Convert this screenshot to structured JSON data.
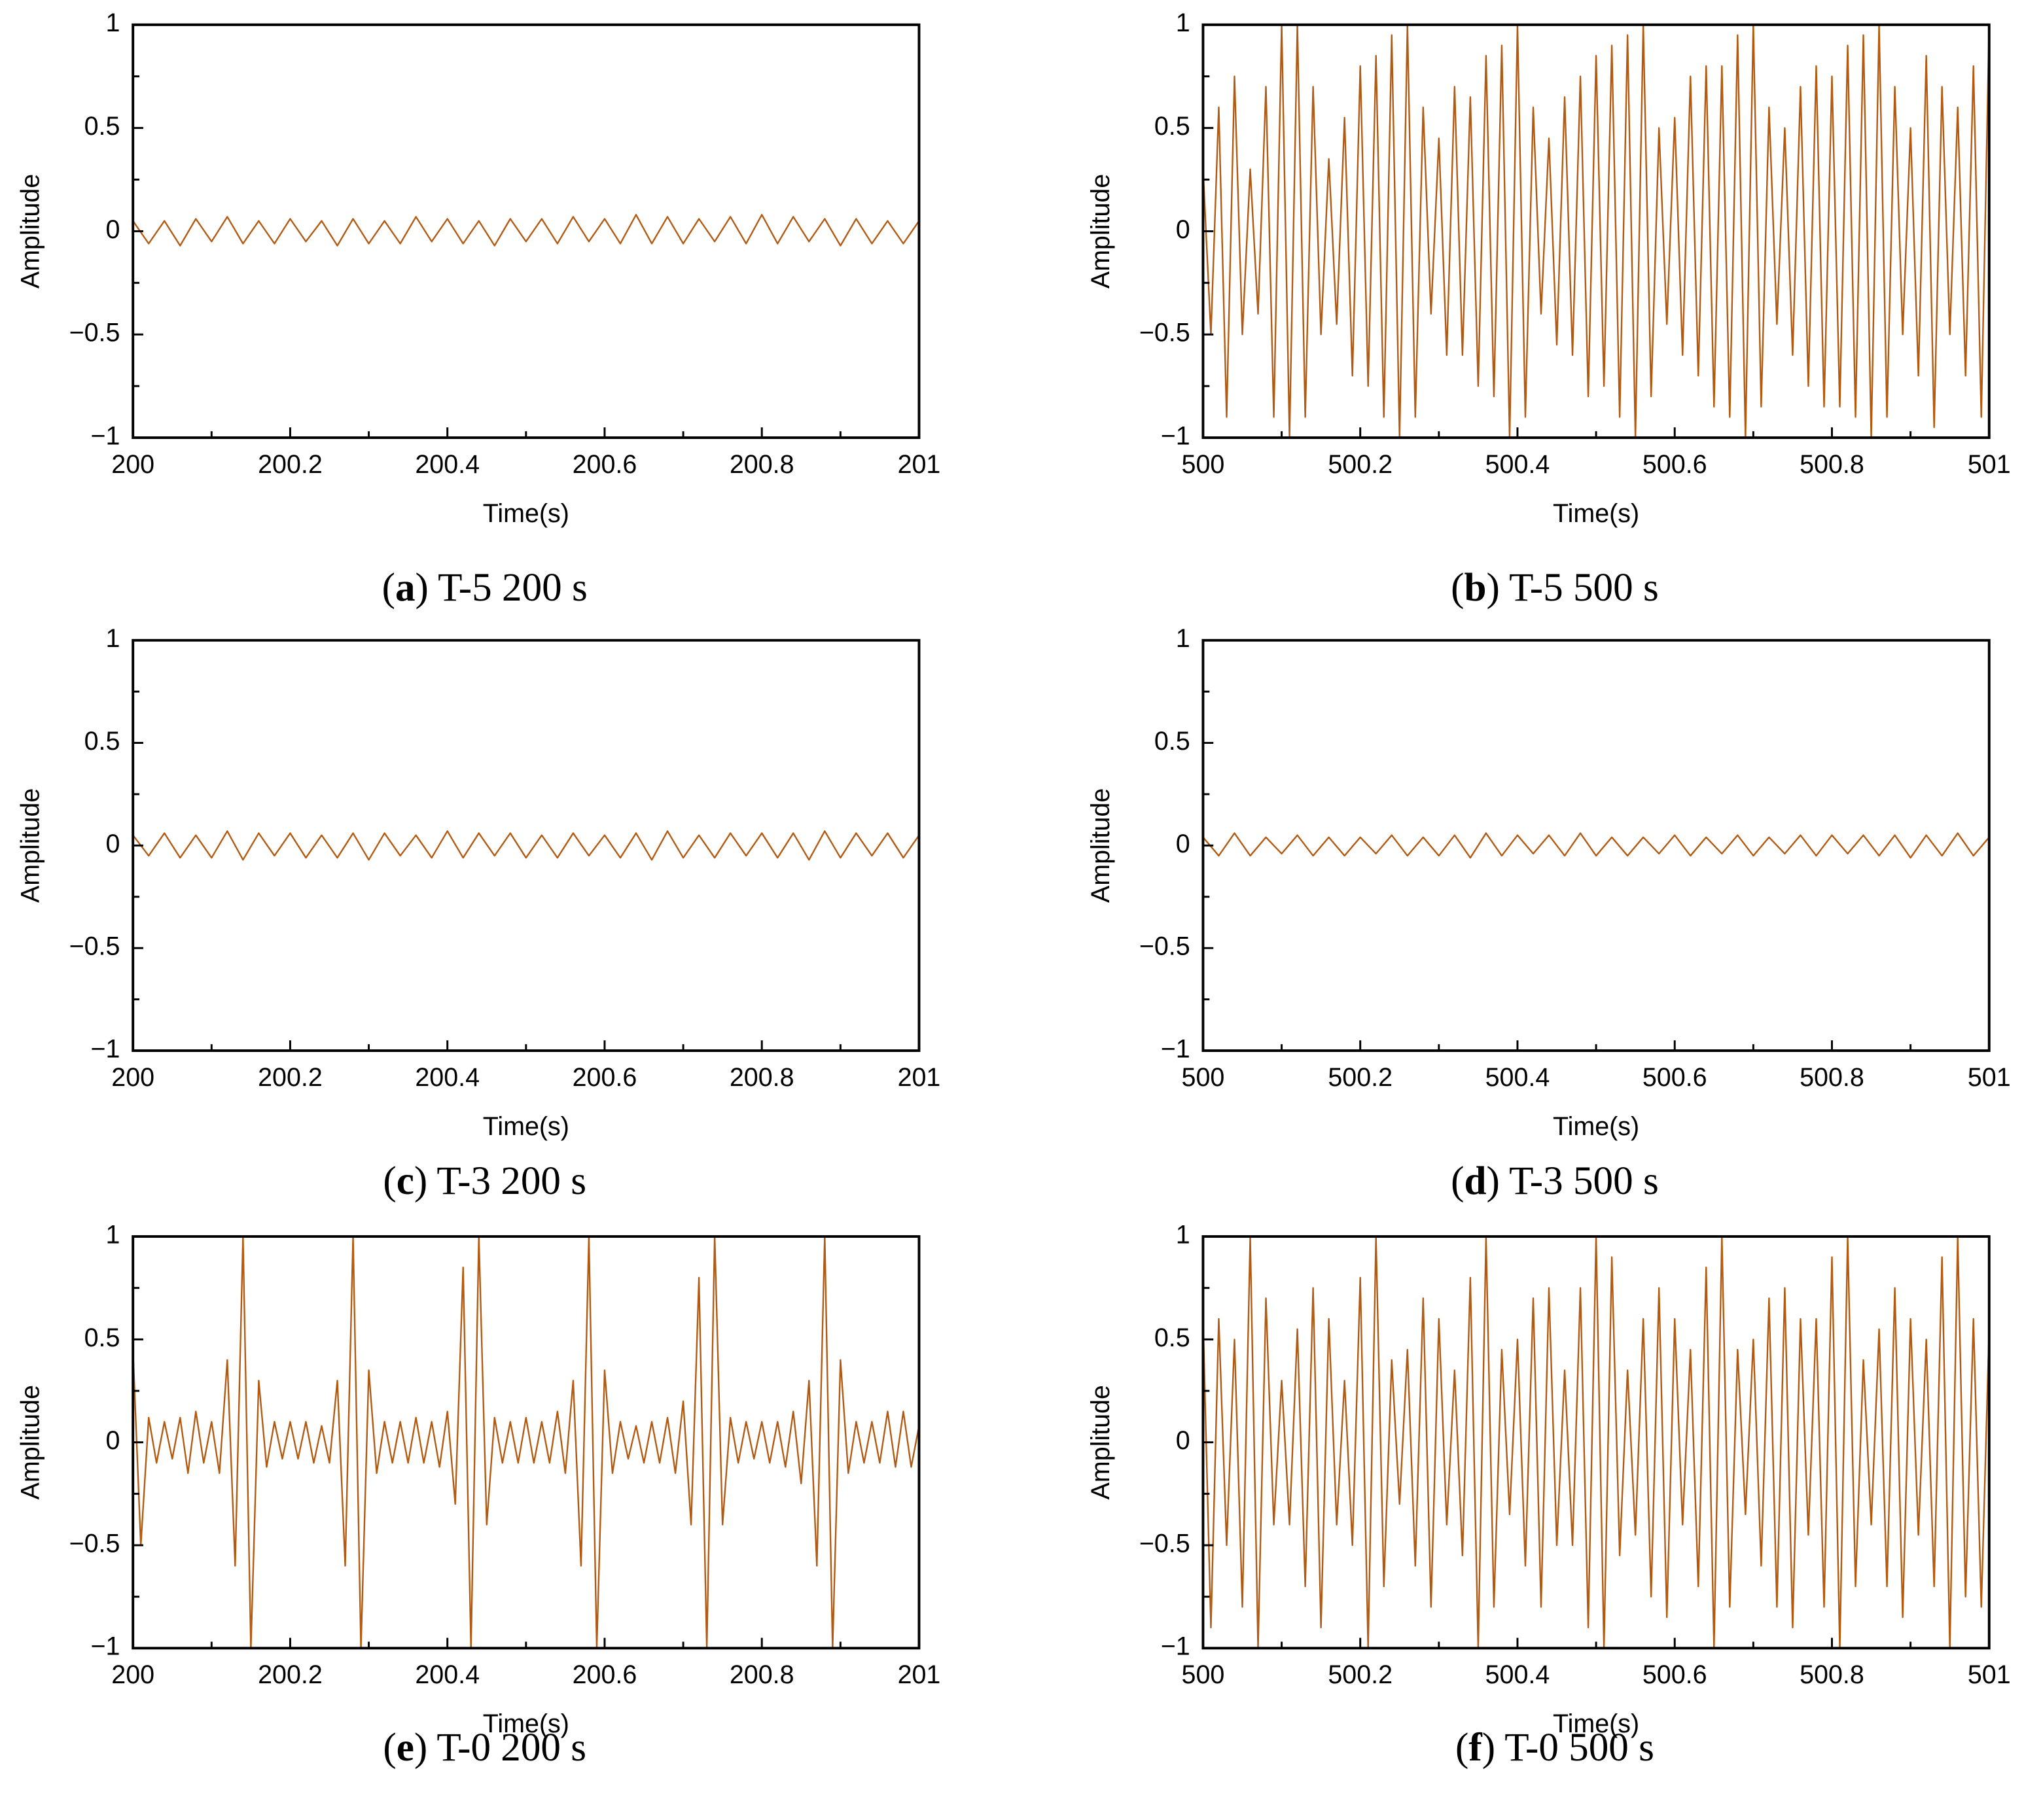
{
  "chart_data": [
    {
      "type": "line",
      "caption": [
        "(",
        "a",
        ") T-5 200 s"
      ],
      "xlabel": "Time(s)",
      "ylabel": "Amplitude",
      "color": "#b35a12",
      "xlim": [
        200,
        201
      ],
      "ylim": [
        -1,
        1
      ],
      "xticks": [
        200,
        200.2,
        200.4,
        200.6,
        200.8,
        201
      ],
      "yticks": [
        {
          "value": -1,
          "label": "−1"
        },
        {
          "value": -0.5,
          "label": "−0.5"
        },
        0,
        0.5,
        1
      ],
      "x": [
        200,
        200.02,
        200.04,
        200.06,
        200.08,
        200.1,
        200.12,
        200.14,
        200.16,
        200.18,
        200.2,
        200.22,
        200.24,
        200.26,
        200.28,
        200.3,
        200.32,
        200.34,
        200.36,
        200.38,
        200.4,
        200.42,
        200.44,
        200.46,
        200.48,
        200.5,
        200.52,
        200.54,
        200.56,
        200.58,
        200.6,
        200.62,
        200.64,
        200.66,
        200.68,
        200.7,
        200.72,
        200.74,
        200.76,
        200.78,
        200.8,
        200.82,
        200.84,
        200.86,
        200.88,
        200.9,
        200.92,
        200.94,
        200.96,
        200.98,
        201
      ],
      "values": [
        0.05,
        -0.06,
        0.05,
        -0.07,
        0.06,
        -0.05,
        0.07,
        -0.06,
        0.05,
        -0.06,
        0.06,
        -0.05,
        0.05,
        -0.07,
        0.06,
        -0.06,
        0.05,
        -0.06,
        0.07,
        -0.05,
        0.06,
        -0.06,
        0.05,
        -0.07,
        0.06,
        -0.05,
        0.06,
        -0.06,
        0.07,
        -0.05,
        0.06,
        -0.06,
        0.08,
        -0.06,
        0.07,
        -0.06,
        0.06,
        -0.05,
        0.07,
        -0.06,
        0.08,
        -0.06,
        0.07,
        -0.05,
        0.06,
        -0.07,
        0.06,
        -0.06,
        0.05,
        -0.06,
        0.05
      ]
    },
    {
      "type": "line",
      "caption": [
        "(",
        "b",
        ") T-5 500 s"
      ],
      "xlabel": "Time(s)",
      "ylabel": "Amplitude",
      "color": "#b35a12",
      "xlim": [
        500,
        501
      ],
      "ylim": [
        -1,
        1
      ],
      "xticks": [
        500,
        500.2,
        500.4,
        500.6,
        500.8,
        501
      ],
      "yticks": [
        {
          "value": -1,
          "label": "−1"
        },
        {
          "value": -0.5,
          "label": "−0.5"
        },
        0,
        0.5,
        1
      ],
      "x": [
        500,
        500.01,
        500.02,
        500.03,
        500.04,
        500.05,
        500.06,
        500.07,
        500.08,
        500.09,
        500.1,
        500.11,
        500.12,
        500.13,
        500.14,
        500.15,
        500.16,
        500.17,
        500.18,
        500.19,
        500.2,
        500.21,
        500.22,
        500.23,
        500.24,
        500.25,
        500.26,
        500.27,
        500.28,
        500.29,
        500.3,
        500.31,
        500.32,
        500.33,
        500.34,
        500.35,
        500.36,
        500.37,
        500.38,
        500.39,
        500.4,
        500.41,
        500.42,
        500.43,
        500.44,
        500.45,
        500.46,
        500.47,
        500.48,
        500.49,
        500.5,
        500.51,
        500.52,
        500.53,
        500.54,
        500.55,
        500.56,
        500.57,
        500.58,
        500.59,
        500.6,
        500.61,
        500.62,
        500.63,
        500.64,
        500.65,
        500.66,
        500.67,
        500.68,
        500.69,
        500.7,
        500.71,
        500.72,
        500.73,
        500.74,
        500.75,
        500.76,
        500.77,
        500.78,
        500.79,
        500.8,
        500.81,
        500.82,
        500.83,
        500.84,
        500.85,
        500.86,
        500.87,
        500.88,
        500.89,
        500.9,
        500.91,
        500.92,
        500.93,
        500.94,
        500.95,
        500.96,
        500.97,
        500.98,
        500.99,
        501
      ],
      "values": [
        0.3,
        -0.5,
        0.6,
        -0.9,
        0.75,
        -0.5,
        0.3,
        -0.4,
        0.7,
        -0.9,
        1,
        -1,
        1,
        -0.9,
        0.7,
        -0.5,
        0.35,
        -0.45,
        0.55,
        -0.7,
        0.8,
        -0.75,
        0.85,
        -0.9,
        0.95,
        -1,
        1,
        -0.9,
        0.6,
        -0.4,
        0.45,
        -0.6,
        0.7,
        -0.6,
        0.65,
        -0.75,
        0.85,
        -0.8,
        0.9,
        -1,
        1,
        -0.9,
        0.6,
        -0.4,
        0.45,
        -0.55,
        0.65,
        -0.6,
        0.75,
        -0.8,
        0.85,
        -0.75,
        0.9,
        -0.9,
        0.95,
        -1,
        1,
        -0.8,
        0.5,
        -0.45,
        0.55,
        -0.6,
        0.75,
        -0.7,
        0.8,
        -0.85,
        0.8,
        -0.9,
        0.95,
        -1,
        1,
        -0.85,
        0.6,
        -0.45,
        0.5,
        -0.6,
        0.7,
        -0.75,
        0.8,
        -0.85,
        0.75,
        -0.85,
        0.9,
        -0.9,
        0.95,
        -1,
        1,
        -0.9,
        0.7,
        -0.5,
        0.5,
        -0.7,
        0.85,
        -0.95,
        0.7,
        -0.5,
        0.6,
        -0.7,
        0.8,
        -0.9,
        1
      ]
    },
    {
      "type": "line",
      "caption": [
        "(",
        "c",
        ") T-3 200 s"
      ],
      "xlabel": "Time(s)",
      "ylabel": "Amplitude",
      "color": "#b35a12",
      "xlim": [
        200,
        201
      ],
      "ylim": [
        -1,
        1
      ],
      "xticks": [
        200,
        200.2,
        200.4,
        200.6,
        200.8,
        201
      ],
      "yticks": [
        {
          "value": -1,
          "label": "−1"
        },
        {
          "value": -0.5,
          "label": "−0.5"
        },
        0,
        0.5,
        1
      ],
      "x": [
        200,
        200.02,
        200.04,
        200.06,
        200.08,
        200.1,
        200.12,
        200.14,
        200.16,
        200.18,
        200.2,
        200.22,
        200.24,
        200.26,
        200.28,
        200.3,
        200.32,
        200.34,
        200.36,
        200.38,
        200.4,
        200.42,
        200.44,
        200.46,
        200.48,
        200.5,
        200.52,
        200.54,
        200.56,
        200.58,
        200.6,
        200.62,
        200.64,
        200.66,
        200.68,
        200.7,
        200.72,
        200.74,
        200.76,
        200.78,
        200.8,
        200.82,
        200.84,
        200.86,
        200.88,
        200.9,
        200.92,
        200.94,
        200.96,
        200.98,
        201
      ],
      "values": [
        0.05,
        -0.05,
        0.06,
        -0.06,
        0.05,
        -0.06,
        0.07,
        -0.07,
        0.06,
        -0.05,
        0.06,
        -0.06,
        0.05,
        -0.06,
        0.06,
        -0.07,
        0.06,
        -0.05,
        0.05,
        -0.06,
        0.07,
        -0.06,
        0.06,
        -0.05,
        0.06,
        -0.06,
        0.05,
        -0.06,
        0.06,
        -0.05,
        0.05,
        -0.06,
        0.06,
        -0.07,
        0.07,
        -0.06,
        0.05,
        -0.06,
        0.06,
        -0.05,
        0.06,
        -0.06,
        0.06,
        -0.07,
        0.07,
        -0.06,
        0.06,
        -0.05,
        0.06,
        -0.06,
        0.05
      ]
    },
    {
      "type": "line",
      "caption": [
        "(",
        "d",
        ") T-3 500 s"
      ],
      "xlabel": "Time(s)",
      "ylabel": "Amplitude",
      "color": "#b35a12",
      "xlim": [
        500,
        501
      ],
      "ylim": [
        -1,
        1
      ],
      "xticks": [
        500,
        500.2,
        500.4,
        500.6,
        500.8,
        501
      ],
      "yticks": [
        {
          "value": -1,
          "label": "−1"
        },
        {
          "value": -0.5,
          "label": "−0.5"
        },
        0,
        0.5,
        1
      ],
      "x": [
        500,
        500.02,
        500.04,
        500.06,
        500.08,
        500.1,
        500.12,
        500.14,
        500.16,
        500.18,
        500.2,
        500.22,
        500.24,
        500.26,
        500.28,
        500.3,
        500.32,
        500.34,
        500.36,
        500.38,
        500.4,
        500.42,
        500.44,
        500.46,
        500.48,
        500.5,
        500.52,
        500.54,
        500.56,
        500.58,
        500.6,
        500.62,
        500.64,
        500.66,
        500.68,
        500.7,
        500.72,
        500.74,
        500.76,
        500.78,
        500.8,
        500.82,
        500.84,
        500.86,
        500.88,
        500.9,
        500.92,
        500.94,
        500.96,
        500.98,
        501
      ],
      "values": [
        0.04,
        -0.05,
        0.06,
        -0.05,
        0.04,
        -0.04,
        0.05,
        -0.05,
        0.04,
        -0.05,
        0.04,
        -0.04,
        0.05,
        -0.05,
        0.04,
        -0.05,
        0.05,
        -0.06,
        0.06,
        -0.05,
        0.05,
        -0.04,
        0.05,
        -0.05,
        0.06,
        -0.05,
        0.04,
        -0.05,
        0.04,
        -0.04,
        0.05,
        -0.05,
        0.04,
        -0.04,
        0.05,
        -0.05,
        0.04,
        -0.04,
        0.05,
        -0.05,
        0.05,
        -0.04,
        0.05,
        -0.05,
        0.05,
        -0.06,
        0.05,
        -0.05,
        0.06,
        -0.05,
        0.04
      ]
    },
    {
      "type": "line",
      "caption": [
        "(",
        "e",
        ") T-0 200 s"
      ],
      "xlabel": "Time(s)",
      "ylabel": "Amplitude",
      "color": "#b35a12",
      "xlim": [
        200,
        201
      ],
      "ylim": [
        -1,
        1
      ],
      "xticks": [
        200,
        200.2,
        200.4,
        200.6,
        200.8,
        201
      ],
      "yticks": [
        {
          "value": -1,
          "label": "−1"
        },
        {
          "value": -0.5,
          "label": "−0.5"
        },
        0,
        0.5,
        1
      ],
      "x": [
        200,
        200.01,
        200.02,
        200.03,
        200.04,
        200.05,
        200.06,
        200.07,
        200.08,
        200.09,
        200.1,
        200.11,
        200.12,
        200.13,
        200.14,
        200.15,
        200.16,
        200.17,
        200.18,
        200.19,
        200.2,
        200.21,
        200.22,
        200.23,
        200.24,
        200.25,
        200.26,
        200.27,
        200.28,
        200.29,
        200.3,
        200.31,
        200.32,
        200.33,
        200.34,
        200.35,
        200.36,
        200.37,
        200.38,
        200.39,
        200.4,
        200.41,
        200.42,
        200.43,
        200.44,
        200.45,
        200.46,
        200.47,
        200.48,
        200.49,
        200.5,
        200.51,
        200.52,
        200.53,
        200.54,
        200.55,
        200.56,
        200.57,
        200.58,
        200.59,
        200.6,
        200.61,
        200.62,
        200.63,
        200.64,
        200.65,
        200.66,
        200.67,
        200.68,
        200.69,
        200.7,
        200.71,
        200.72,
        200.73,
        200.74,
        200.75,
        200.76,
        200.77,
        200.78,
        200.79,
        200.8,
        200.81,
        200.82,
        200.83,
        200.84,
        200.85,
        200.86,
        200.87,
        200.88,
        200.89,
        200.9,
        200.91,
        200.92,
        200.93,
        200.94,
        200.95,
        200.96,
        200.97,
        200.98,
        200.99,
        201
      ],
      "values": [
        0.45,
        -0.5,
        0.12,
        -0.1,
        0.1,
        -0.08,
        0.12,
        -0.15,
        0.15,
        -0.1,
        0.1,
        -0.15,
        0.4,
        -0.6,
        1,
        -1,
        0.3,
        -0.12,
        0.1,
        -0.08,
        0.1,
        -0.08,
        0.1,
        -0.1,
        0.08,
        -0.1,
        0.3,
        -0.6,
        1,
        -1,
        0.35,
        -0.15,
        0.1,
        -0.1,
        0.1,
        -0.1,
        0.12,
        -0.1,
        0.1,
        -0.12,
        0.15,
        -0.3,
        0.85,
        -1,
        1,
        -0.4,
        0.12,
        -0.1,
        0.1,
        -0.1,
        0.12,
        -0.1,
        0.1,
        -0.1,
        0.15,
        -0.15,
        0.3,
        -0.6,
        1,
        -1,
        0.35,
        -0.15,
        0.1,
        -0.08,
        0.08,
        -0.1,
        0.1,
        -0.1,
        0.12,
        -0.15,
        0.2,
        -0.4,
        0.8,
        -1,
        1,
        -0.4,
        0.12,
        -0.1,
        0.1,
        -0.08,
        0.1,
        -0.1,
        0.1,
        -0.12,
        0.15,
        -0.2,
        0.3,
        -0.6,
        1,
        -1,
        0.4,
        -0.15,
        0.1,
        -0.1,
        0.1,
        -0.1,
        0.15,
        -0.12,
        0.15,
        -0.12,
        0.08
      ]
    },
    {
      "type": "line",
      "caption": [
        "(",
        "f",
        ") T-0 500 s"
      ],
      "xlabel": "Time(s)",
      "ylabel": "Amplitude",
      "color": "#b35a12",
      "xlim": [
        500,
        501
      ],
      "ylim": [
        -1,
        1
      ],
      "xticks": [
        500,
        500.2,
        500.4,
        500.6,
        500.8,
        501
      ],
      "yticks": [
        {
          "value": -1,
          "label": "−1"
        },
        {
          "value": -0.5,
          "label": "−0.5"
        },
        0,
        0.5,
        1
      ],
      "x": [
        500,
        500.01,
        500.02,
        500.03,
        500.04,
        500.05,
        500.06,
        500.07,
        500.08,
        500.09,
        500.1,
        500.11,
        500.12,
        500.13,
        500.14,
        500.15,
        500.16,
        500.17,
        500.18,
        500.19,
        500.2,
        500.21,
        500.22,
        500.23,
        500.24,
        500.25,
        500.26,
        500.27,
        500.28,
        500.29,
        500.3,
        500.31,
        500.32,
        500.33,
        500.34,
        500.35,
        500.36,
        500.37,
        500.38,
        500.39,
        500.4,
        500.41,
        500.42,
        500.43,
        500.44,
        500.45,
        500.46,
        500.47,
        500.48,
        500.49,
        500.5,
        500.51,
        500.52,
        500.53,
        500.54,
        500.55,
        500.56,
        500.57,
        500.58,
        500.59,
        500.6,
        500.61,
        500.62,
        500.63,
        500.64,
        500.65,
        500.66,
        500.67,
        500.68,
        500.69,
        500.7,
        500.71,
        500.72,
        500.73,
        500.74,
        500.75,
        500.76,
        500.77,
        500.78,
        500.79,
        500.8,
        500.81,
        500.82,
        500.83,
        500.84,
        500.85,
        500.86,
        500.87,
        500.88,
        500.89,
        500.9,
        500.91,
        500.92,
        500.93,
        500.94,
        500.95,
        500.96,
        500.97,
        500.98,
        500.99,
        501
      ],
      "values": [
        0.6,
        -0.9,
        0.6,
        -0.5,
        0.5,
        -0.8,
        1,
        -1,
        0.7,
        -0.4,
        0.3,
        -0.4,
        0.55,
        -0.7,
        0.75,
        -0.9,
        0.6,
        -0.4,
        0.3,
        -0.5,
        0.8,
        -1,
        1,
        -0.7,
        0.4,
        -0.3,
        0.45,
        -0.6,
        0.7,
        -0.8,
        0.6,
        -0.4,
        0.35,
        -0.55,
        0.8,
        -1,
        1,
        -0.8,
        0.45,
        -0.35,
        0.5,
        -0.6,
        0.7,
        -0.8,
        0.75,
        -0.5,
        0.35,
        -0.5,
        0.75,
        -0.9,
        1,
        -1,
        0.9,
        -0.55,
        0.35,
        -0.45,
        0.6,
        -0.75,
        0.75,
        -0.85,
        0.6,
        -0.4,
        0.45,
        -0.7,
        0.85,
        -1,
        1,
        -0.8,
        0.45,
        -0.35,
        0.5,
        -0.6,
        0.7,
        -0.8,
        0.75,
        -0.9,
        0.6,
        -0.45,
        0.6,
        -0.8,
        0.9,
        -1,
        1,
        -0.7,
        0.4,
        -0.4,
        0.55,
        -0.7,
        0.75,
        -0.85,
        0.6,
        -0.45,
        0.5,
        -0.7,
        0.9,
        -1,
        1,
        -0.75,
        0.6,
        -0.8,
        0.55
      ]
    }
  ]
}
